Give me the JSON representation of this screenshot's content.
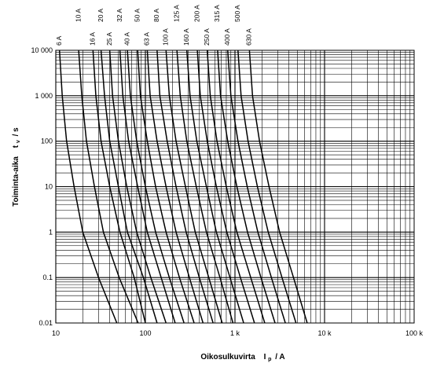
{
  "chart_data": {
    "type": "line",
    "title": "",
    "xlabel": "Oikosulkuvirta",
    "xlabel_symbol": "I",
    "xlabel_sub": "p",
    "xlabel_unit": "/  A",
    "ylabel": "Toiminta-aika",
    "ylabel_symbol": "t",
    "ylabel_sub": "v",
    "ylabel_unit": "/  s",
    "x_scale": "log",
    "y_scale": "log",
    "xlim": [
      10,
      100000
    ],
    "ylim": [
      0.01,
      10000
    ],
    "grid": true,
    "x_ticks": [
      10,
      100,
      1000,
      10000,
      100000
    ],
    "x_tick_labels": [
      "10",
      "100",
      "1 k",
      "10 k",
      "100 k"
    ],
    "y_ticks": [
      0.01,
      0.1,
      1,
      10,
      100,
      1000,
      10000
    ],
    "y_tick_labels": [
      "0.01",
      "0.1",
      "1",
      "10",
      "100",
      "1 000",
      "10 000"
    ],
    "series": [
      {
        "name": "6 A",
        "label_x": 11,
        "points": [
          [
            11,
            10000
          ],
          [
            11.8,
            1000
          ],
          [
            13.2,
            100
          ],
          [
            16,
            10
          ],
          [
            20,
            1
          ],
          [
            30,
            0.1
          ],
          [
            48,
            0.01
          ]
        ]
      },
      {
        "name": "10 A",
        "label_x": 18,
        "points": [
          [
            18,
            10000
          ],
          [
            19.5,
            1000
          ],
          [
            22,
            100
          ],
          [
            27,
            10
          ],
          [
            34,
            1
          ],
          [
            51,
            0.1
          ],
          [
            83,
            0.01
          ]
        ]
      },
      {
        "name": "16 A",
        "label_x": 26,
        "points": [
          [
            26,
            10000
          ],
          [
            28,
            1000
          ],
          [
            32,
            100
          ],
          [
            40,
            10
          ],
          [
            52,
            1
          ],
          [
            75,
            0.1
          ],
          [
            100,
            0.01
          ]
        ]
      },
      {
        "name": "20 A",
        "label_x": 32,
        "points": [
          [
            32,
            10000
          ],
          [
            35,
            1000
          ],
          [
            40,
            100
          ],
          [
            50,
            10
          ],
          [
            63,
            1
          ],
          [
            95,
            0.1
          ],
          [
            135,
            0.01
          ]
        ]
      },
      {
        "name": "25 A",
        "label_x": 40,
        "points": [
          [
            40,
            10000
          ],
          [
            43,
            1000
          ],
          [
            50,
            100
          ],
          [
            62,
            10
          ],
          [
            80,
            1
          ],
          [
            115,
            0.1
          ],
          [
            170,
            0.01
          ]
        ]
      },
      {
        "name": "32 A",
        "label_x": 52,
        "points": [
          [
            52,
            10000
          ],
          [
            56,
            1000
          ],
          [
            65,
            100
          ],
          [
            82,
            10
          ],
          [
            105,
            1
          ],
          [
            150,
            0.1
          ],
          [
            215,
            0.01
          ]
        ]
      },
      {
        "name": "40 A",
        "label_x": 63,
        "points": [
          [
            63,
            10000
          ],
          [
            68,
            1000
          ],
          [
            80,
            100
          ],
          [
            100,
            10
          ],
          [
            130,
            1
          ],
          [
            185,
            0.1
          ],
          [
            270,
            0.01
          ]
        ]
      },
      {
        "name": "50 A",
        "label_x": 82,
        "points": [
          [
            82,
            10000
          ],
          [
            88,
            1000
          ],
          [
            105,
            100
          ],
          [
            130,
            10
          ],
          [
            170,
            1
          ],
          [
            240,
            0.1
          ],
          [
            350,
            0.01
          ]
        ]
      },
      {
        "name": "63 A",
        "label_x": 105,
        "points": [
          [
            105,
            10000
          ],
          [
            113,
            1000
          ],
          [
            135,
            100
          ],
          [
            170,
            10
          ],
          [
            220,
            1
          ],
          [
            310,
            0.1
          ],
          [
            440,
            0.01
          ]
        ]
      },
      {
        "name": "80 A",
        "label_x": 135,
        "points": [
          [
            135,
            10000
          ],
          [
            145,
            1000
          ],
          [
            175,
            100
          ],
          [
            220,
            10
          ],
          [
            285,
            1
          ],
          [
            400,
            0.1
          ],
          [
            570,
            0.01
          ]
        ]
      },
      {
        "name": "100 A",
        "label_x": 170,
        "points": [
          [
            170,
            10000
          ],
          [
            185,
            1000
          ],
          [
            220,
            100
          ],
          [
            280,
            10
          ],
          [
            360,
            1
          ],
          [
            510,
            0.1
          ],
          [
            720,
            0.01
          ]
        ]
      },
      {
        "name": "125 A",
        "label_x": 225,
        "points": [
          [
            225,
            10000
          ],
          [
            245,
            1000
          ],
          [
            290,
            100
          ],
          [
            370,
            10
          ],
          [
            480,
            1
          ],
          [
            680,
            0.1
          ],
          [
            950,
            0.01
          ]
        ]
      },
      {
        "name": "160 A",
        "label_x": 290,
        "points": [
          [
            290,
            10000
          ],
          [
            315,
            1000
          ],
          [
            375,
            100
          ],
          [
            480,
            10
          ],
          [
            620,
            1
          ],
          [
            880,
            0.1
          ],
          [
            1250,
            0.01
          ]
        ]
      },
      {
        "name": "200 A",
        "label_x": 380,
        "points": [
          [
            380,
            10000
          ],
          [
            410,
            1000
          ],
          [
            490,
            100
          ],
          [
            620,
            10
          ],
          [
            810,
            1
          ],
          [
            1150,
            0.1
          ],
          [
            1650,
            0.01
          ]
        ]
      },
      {
        "name": "250 A",
        "label_x": 490,
        "points": [
          [
            490,
            10000
          ],
          [
            530,
            1000
          ],
          [
            630,
            100
          ],
          [
            800,
            10
          ],
          [
            1050,
            1
          ],
          [
            1500,
            0.1
          ],
          [
            2150,
            0.01
          ]
        ]
      },
      {
        "name": "315 A",
        "label_x": 640,
        "points": [
          [
            640,
            10000
          ],
          [
            690,
            1000
          ],
          [
            830,
            100
          ],
          [
            1050,
            10
          ],
          [
            1380,
            1
          ],
          [
            1950,
            0.1
          ],
          [
            2800,
            0.01
          ]
        ]
      },
      {
        "name": "400 A",
        "label_x": 830,
        "points": [
          [
            830,
            10000
          ],
          [
            900,
            1000
          ],
          [
            1080,
            100
          ],
          [
            1370,
            10
          ],
          [
            1800,
            1
          ],
          [
            2550,
            0.1
          ],
          [
            3650,
            0.01
          ]
        ]
      },
      {
        "name": "500 A",
        "label_x": 1080,
        "points": [
          [
            1080,
            10000
          ],
          [
            1170,
            1000
          ],
          [
            1400,
            100
          ],
          [
            1780,
            10
          ],
          [
            2350,
            1
          ],
          [
            3350,
            0.1
          ],
          [
            4800,
            0.01
          ]
        ]
      },
      {
        "name": "630 A",
        "label_x": 1450,
        "points": [
          [
            1450,
            10000
          ],
          [
            1570,
            1000
          ],
          [
            1880,
            100
          ],
          [
            2400,
            10
          ],
          [
            3150,
            1
          ],
          [
            4500,
            0.1
          ],
          [
            6400,
            0.01
          ]
        ]
      }
    ]
  }
}
